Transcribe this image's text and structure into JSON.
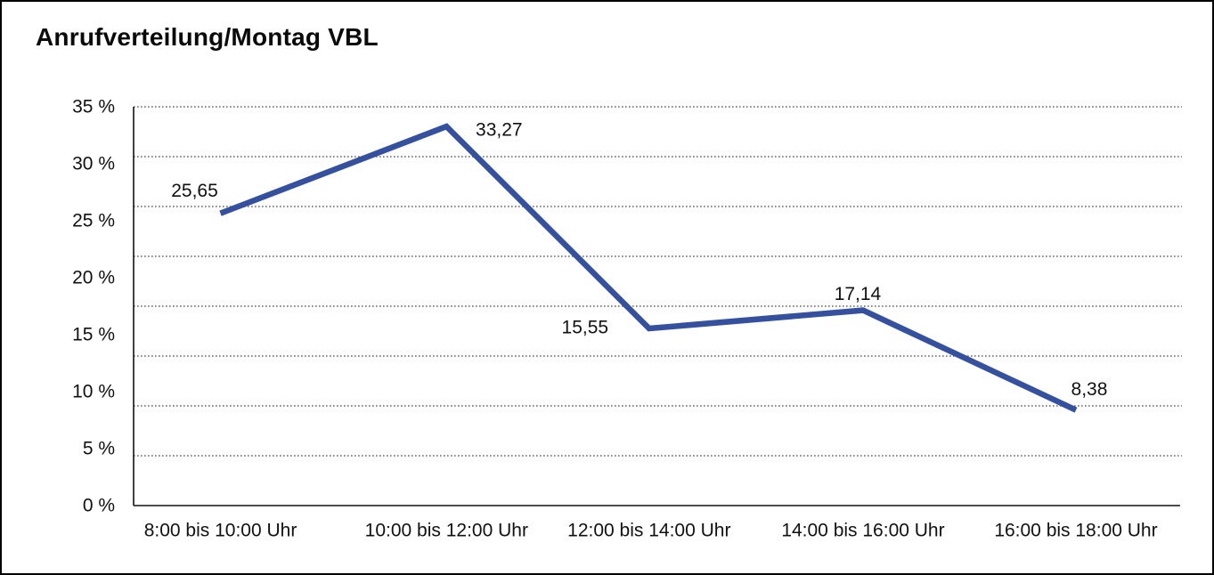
{
  "header": {
    "title": "Anrufverteilung/Montag VBL"
  },
  "chart_data": {
    "type": "line",
    "title": "Anrufverteilung/Montag VBL",
    "categories": [
      "8:00 bis 10:00 Uhr",
      "10:00 bis 12:00 Uhr",
      "12:00 bis 14:00 Uhr",
      "14:00 bis 16:00 Uhr",
      "16:00 bis 18:00 Uhr"
    ],
    "values": [
      25.65,
      33.27,
      15.55,
      17.14,
      8.38
    ],
    "point_labels": [
      "25,65",
      "33,27",
      "15,55",
      "17,14",
      "8,38"
    ],
    "y_tick_labels": [
      "35 %",
      "30 %",
      "25 %",
      "20 %",
      "15 %",
      "10 %",
      "5 %",
      "0 %"
    ],
    "ylim": [
      0,
      35
    ],
    "y_tick_step": 5,
    "xlabel": "",
    "ylabel": "",
    "legend": "none",
    "grid": "horizontal-dotted",
    "colors": {
      "line": "#34509E",
      "text": "#111111",
      "grid": "#4a4a4a",
      "axis": "#111111",
      "background": "#ffffff",
      "border": "#000000"
    }
  }
}
